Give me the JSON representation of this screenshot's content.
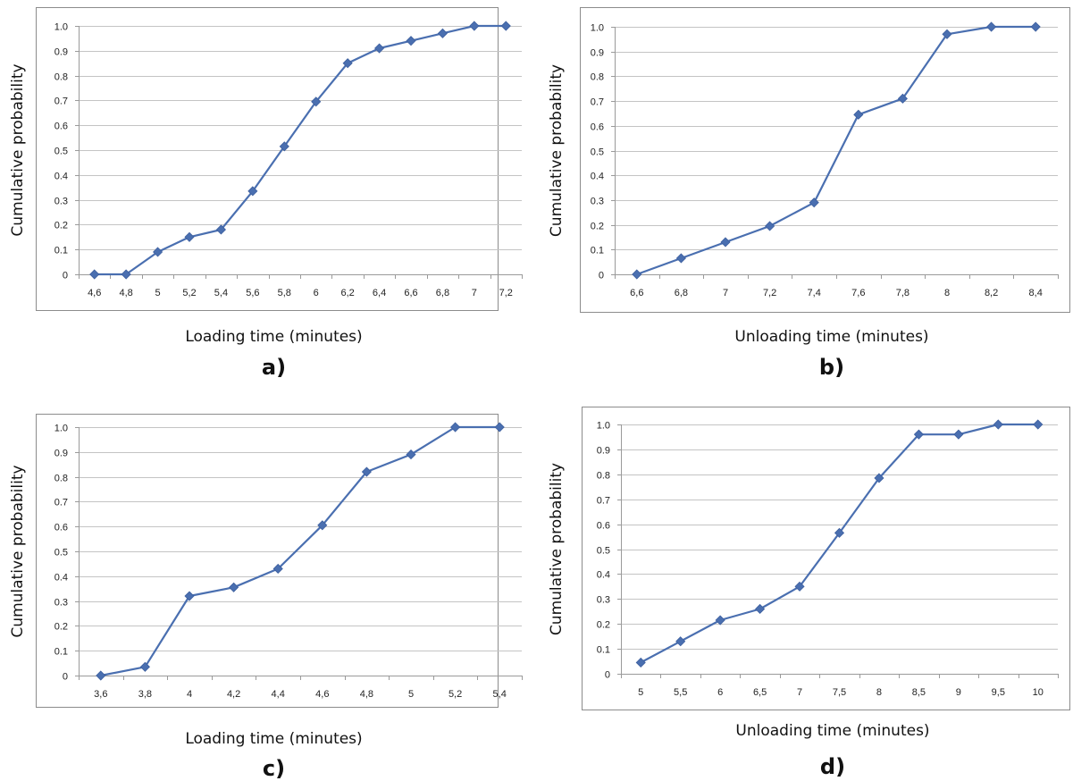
{
  "chart_data": [
    {
      "type": "line",
      "panel_label": "a)",
      "xlabel": "Loading time (minutes)",
      "ylabel": "Cumulative probability",
      "categories": [
        "4,6",
        "4,8",
        "5",
        "5,2",
        "5,4",
        "5,6",
        "5,8",
        "6",
        "6,2",
        "6,4",
        "6,6",
        "6,8",
        "7",
        "7,2"
      ],
      "values": [
        0,
        0,
        0.09,
        0.15,
        0.18,
        0.335,
        0.515,
        0.695,
        0.85,
        0.91,
        0.94,
        0.97,
        1.0,
        1.0
      ],
      "yticks": [
        "0",
        "0.1",
        "0.2",
        "0.3",
        "0.4",
        "0.5",
        "0.6",
        "0.7",
        "0.8",
        "0.9",
        "1.0"
      ],
      "ylim": [
        0,
        1
      ],
      "grid": true,
      "legend": "none",
      "color": "#4a6fb0"
    },
    {
      "type": "line",
      "panel_label": "b)",
      "xlabel": "Unloading time (minutes)",
      "ylabel": "Cumulative probability",
      "categories": [
        "6,6",
        "6,8",
        "7",
        "7,2",
        "7,4",
        "7,6",
        "7,8",
        "8",
        "8,2",
        "8,4"
      ],
      "values": [
        0,
        0.065,
        0.13,
        0.195,
        0.29,
        0.645,
        0.71,
        0.97,
        1.0,
        1.0
      ],
      "yticks": [
        "0",
        "0.1",
        "0.2",
        "0.3",
        "0.4",
        "0.5",
        "0.6",
        "0.7",
        "0.8",
        "0.9",
        "1.0"
      ],
      "ylim": [
        0,
        1
      ],
      "grid": true,
      "legend": "none",
      "color": "#4a6fb0"
    },
    {
      "type": "line",
      "panel_label": "c)",
      "xlabel": "Loading time (minutes)",
      "ylabel": "Cumulative probability",
      "categories": [
        "3,6",
        "3,8",
        "4",
        "4,2",
        "4,4",
        "4,6",
        "4,8",
        "5",
        "5,2",
        "5,4"
      ],
      "values": [
        0,
        0.035,
        0.32,
        0.355,
        0.43,
        0.605,
        0.82,
        0.89,
        1.0,
        1.0
      ],
      "yticks": [
        "0",
        "0.1",
        "0.2",
        "0.3",
        "0.4",
        "0.5",
        "0.6",
        "0.7",
        "0.8",
        "0.9",
        "1.0"
      ],
      "ylim": [
        0,
        1
      ],
      "grid": true,
      "legend": "none",
      "color": "#4a6fb0"
    },
    {
      "type": "line",
      "panel_label": "d)",
      "xlabel": "Unloading time (minutes)",
      "ylabel": "Cumulative probability",
      "categories": [
        "5",
        "5,5",
        "6",
        "6,5",
        "7",
        "7,5",
        "8",
        "8,5",
        "9",
        "9,5",
        "10"
      ],
      "values": [
        0.045,
        0.13,
        0.215,
        0.26,
        0.35,
        0.565,
        0.785,
        0.96,
        0.96,
        1.0,
        1.0
      ],
      "yticks": [
        "0",
        "0.1",
        "0.2",
        "0.3",
        "0.4",
        "0.5",
        "0.6",
        "0.7",
        "0.8",
        "0.9",
        "1.0"
      ],
      "ylim": [
        0,
        1
      ],
      "grid": true,
      "legend": "none",
      "color": "#4a6fb0"
    }
  ]
}
